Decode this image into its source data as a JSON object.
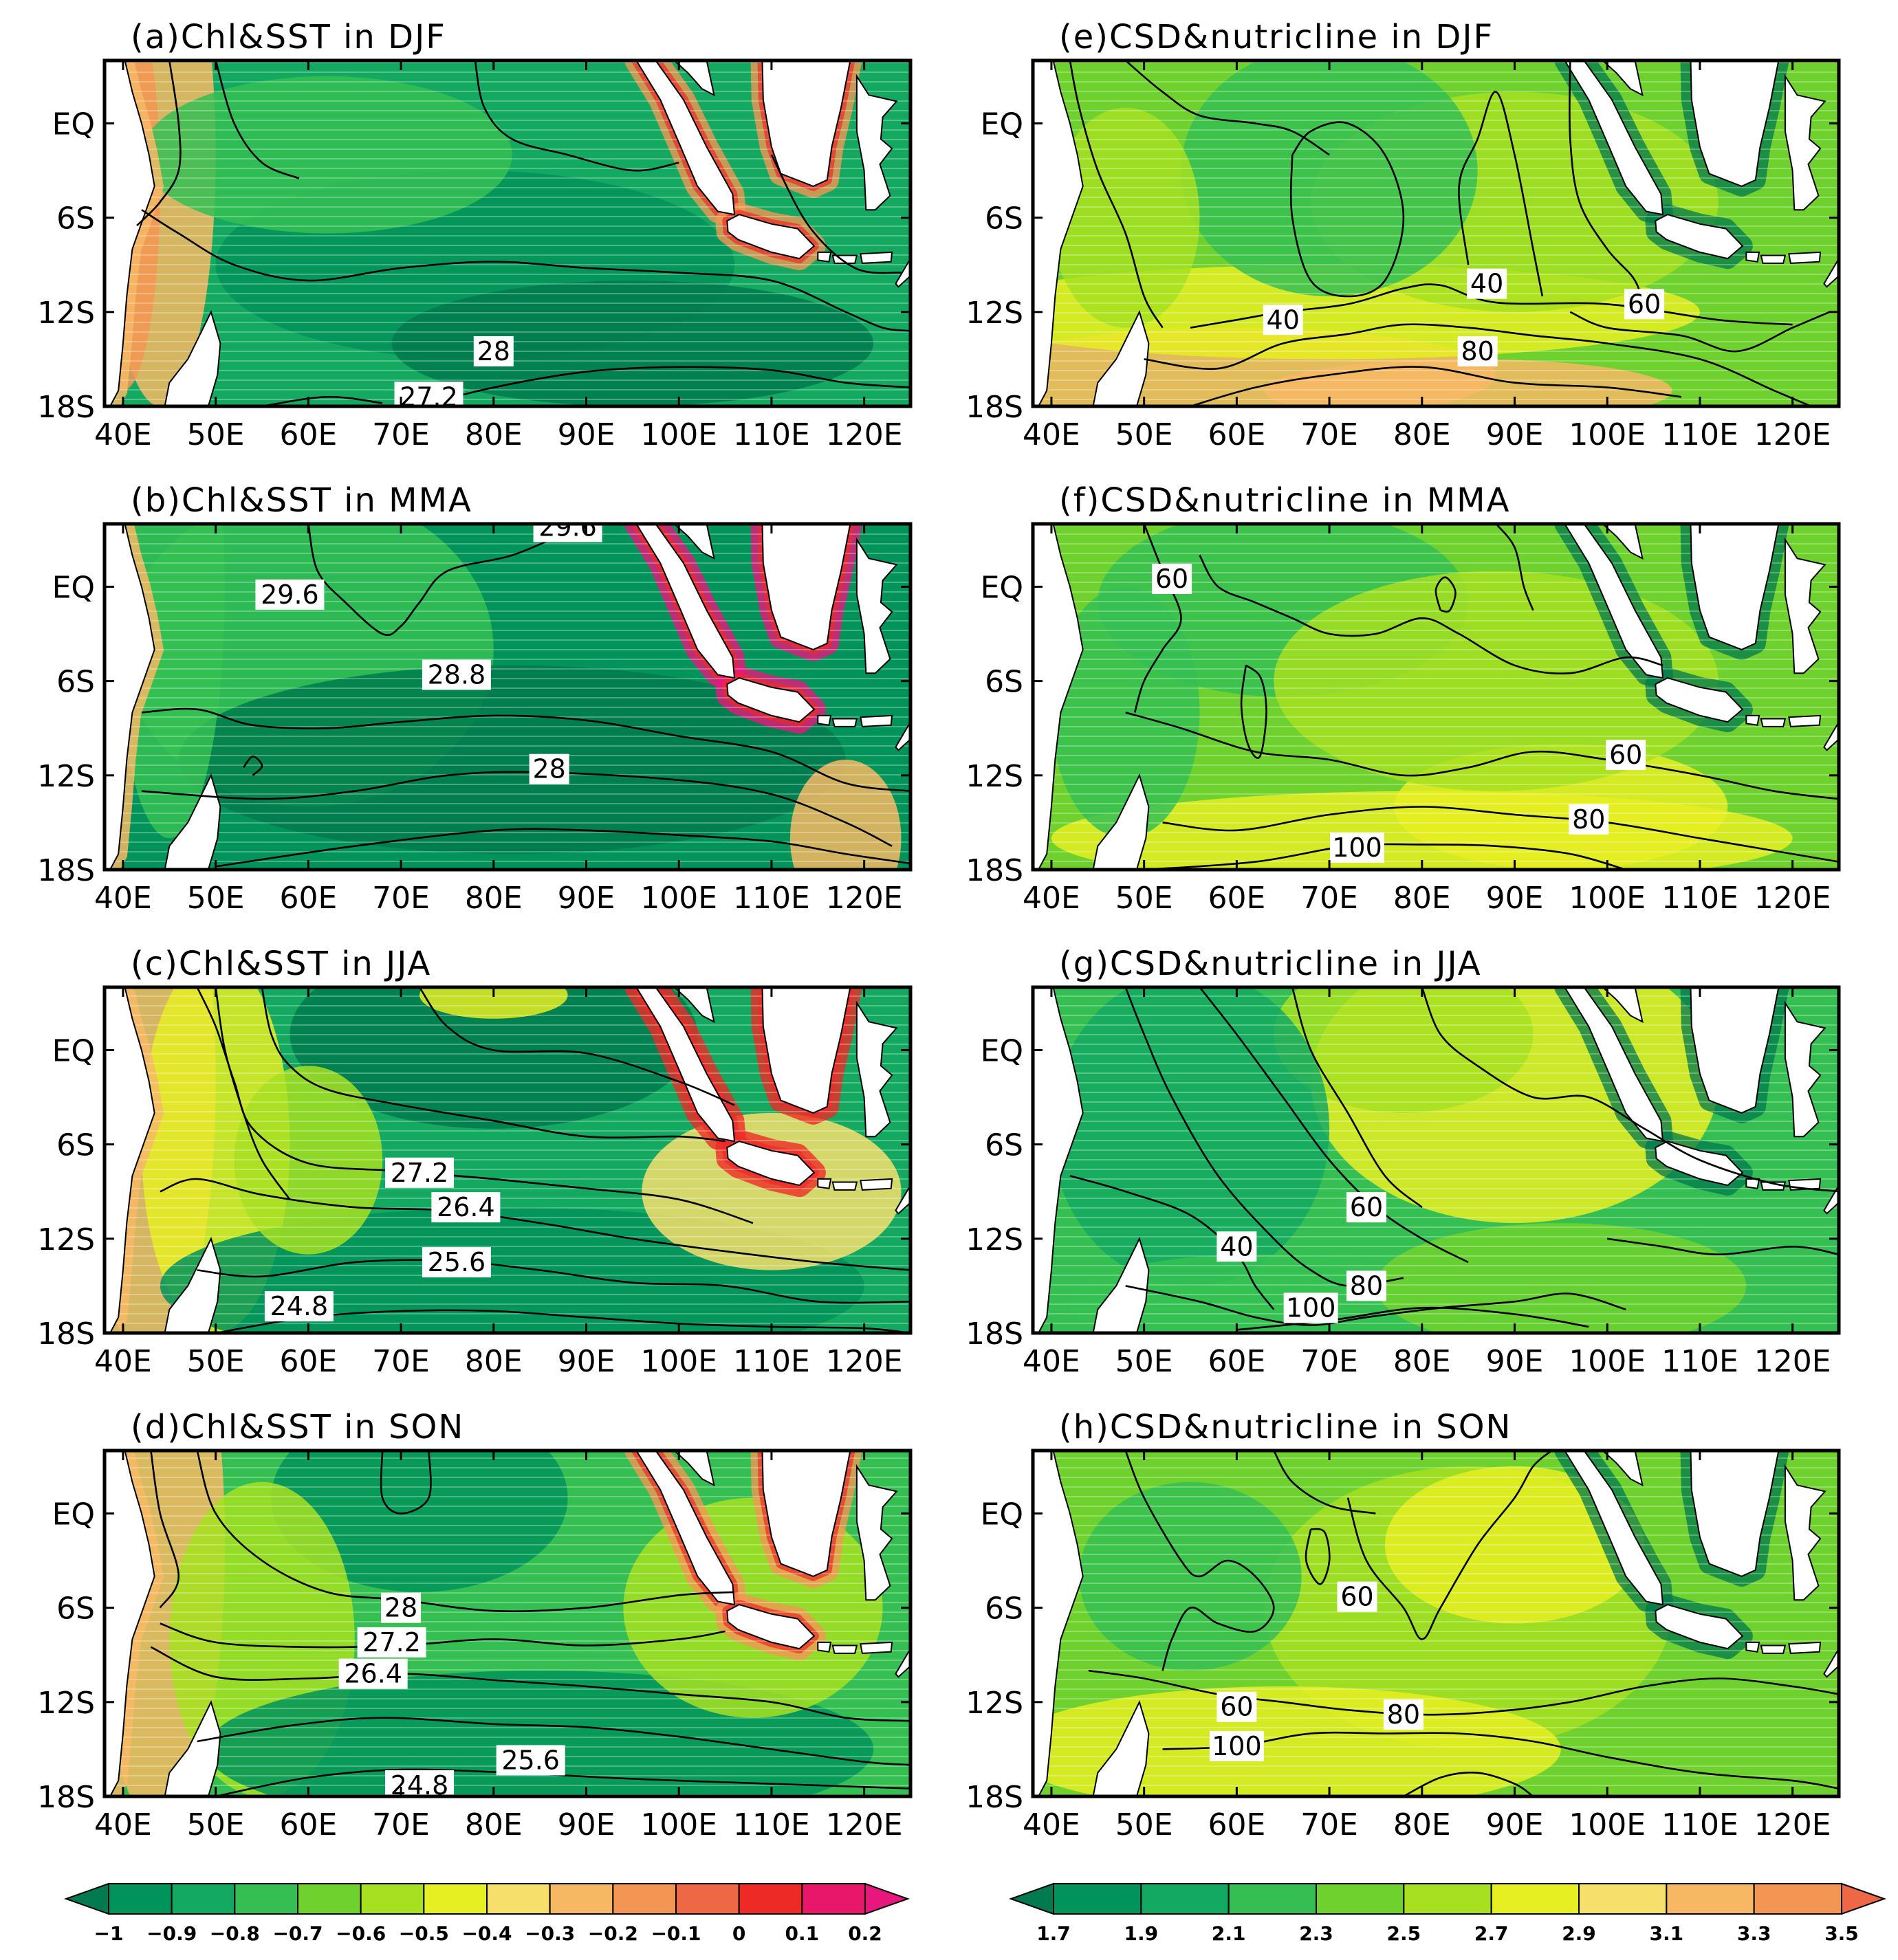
{
  "x_ticks": [
    "40E",
    "50E",
    "60E",
    "70E",
    "80E",
    "90E",
    "100E",
    "110E",
    "120E"
  ],
  "y_ticks": [
    "EQ",
    "6S",
    "12S",
    "18S"
  ],
  "colorbar_left": {
    "labels": [
      "−1",
      "−0.9",
      "−0.8",
      "−0.7",
      "−0.6",
      "−0.5",
      "−0.4",
      "−0.3",
      "−0.2",
      "−0.1",
      "0",
      "0.1",
      "0.2"
    ],
    "colors": [
      "#007a4e",
      "#00935a",
      "#13a960",
      "#35bf52",
      "#6ed12d",
      "#a6e021",
      "#e6ef21",
      "#f7df6b",
      "#f7b864",
      "#f39653",
      "#ee6846",
      "#ee2a27",
      "#e8176a",
      "#e8177d"
    ]
  },
  "colorbar_right": {
    "labels": [
      "1.7",
      "1.9",
      "2.1",
      "2.3",
      "2.5",
      "2.7",
      "2.9",
      "3.1",
      "3.3",
      "3.5"
    ],
    "colors": [
      "#007a4e",
      "#00935a",
      "#13a960",
      "#35bf52",
      "#6ed12d",
      "#a6e021",
      "#e6ef21",
      "#f7df6b",
      "#f7b864",
      "#f39653",
      "#ee6846"
    ]
  },
  "chart_data": [
    {
      "id": "a",
      "type": "heatmap",
      "title": "(a)Chl&SST in DJF",
      "contour_labels": [
        "28",
        "27.2"
      ],
      "xlim": [
        38,
        125
      ],
      "ylim": [
        -18,
        4
      ]
    },
    {
      "id": "b",
      "type": "heatmap",
      "title": "(b)Chl&SST in MMA",
      "contour_labels": [
        "29.6",
        "29.6",
        "28.8",
        "28"
      ],
      "xlim": [
        38,
        125
      ],
      "ylim": [
        -18,
        4
      ]
    },
    {
      "id": "c",
      "type": "heatmap",
      "title": "(c)Chl&SST in JJA",
      "contour_labels": [
        "27.2",
        "26.4",
        "25.6",
        "24.8"
      ],
      "xlim": [
        38,
        125
      ],
      "ylim": [
        -18,
        4
      ]
    },
    {
      "id": "d",
      "type": "heatmap",
      "title": "(d)Chl&SST in SON",
      "contour_labels": [
        "28",
        "27.2",
        "26.4",
        "25.6",
        "24.8"
      ],
      "xlim": [
        38,
        125
      ],
      "ylim": [
        -18,
        4
      ]
    },
    {
      "id": "e",
      "type": "heatmap",
      "title": "(e)CSD&nutricline in DJF",
      "contour_labels": [
        "40",
        "40",
        "60",
        "80"
      ],
      "xlim": [
        38,
        125
      ],
      "ylim": [
        -18,
        4
      ]
    },
    {
      "id": "f",
      "type": "heatmap",
      "title": "(f)CSD&nutricline in MMA",
      "contour_labels": [
        "60",
        "60",
        "80",
        "100"
      ],
      "xlim": [
        38,
        125
      ],
      "ylim": [
        -18,
        4
      ]
    },
    {
      "id": "g",
      "type": "heatmap",
      "title": "(g)CSD&nutricline in JJA",
      "contour_labels": [
        "60",
        "40",
        "80",
        "100"
      ],
      "xlim": [
        38,
        125
      ],
      "ylim": [
        -18,
        4
      ]
    },
    {
      "id": "h",
      "type": "heatmap",
      "title": "(h)CSD&nutricline in SON",
      "contour_labels": [
        "60",
        "60",
        "80",
        "100"
      ],
      "xlim": [
        38,
        125
      ],
      "ylim": [
        -18,
        4
      ]
    }
  ]
}
